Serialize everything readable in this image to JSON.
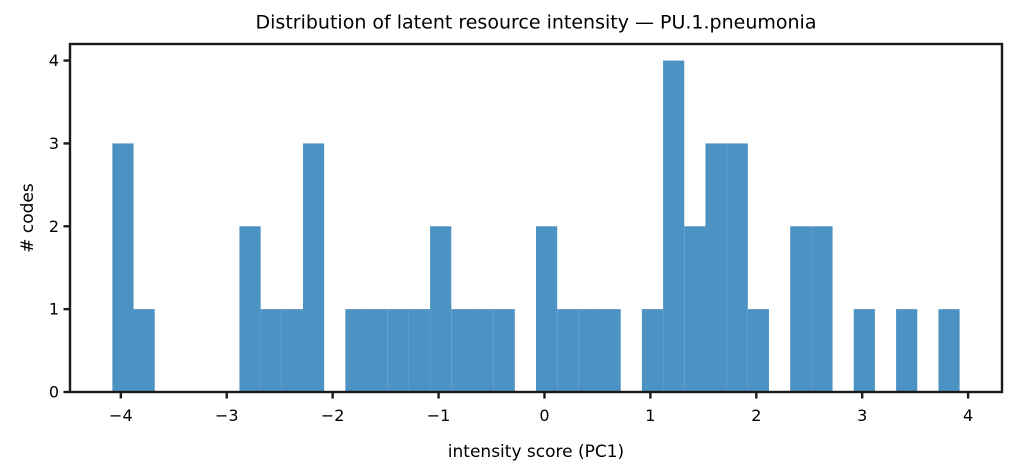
{
  "figure": {
    "background_color": "#ffffff"
  },
  "chart_data": {
    "type": "bar",
    "subtype": "histogram",
    "title": "Distribution of latent resource intensity — PU.1.pneumonia",
    "xlabel": "intensity score (PC1)",
    "ylabel": "# codes",
    "bar_color": "#4C92C3",
    "axis_color": "#1a1a1a",
    "grid": false,
    "legend": null,
    "bin_start": -4.08,
    "bin_width": 0.2,
    "n_bins": 40,
    "counts": [
      3,
      1,
      0,
      0,
      0,
      0,
      2,
      1,
      1,
      3,
      0,
      1,
      1,
      1,
      1,
      2,
      1,
      1,
      1,
      0,
      2,
      1,
      1,
      1,
      0,
      1,
      4,
      2,
      3,
      3,
      1,
      0,
      2,
      2,
      0,
      1,
      0,
      1,
      0,
      1
    ],
    "xlim": [
      -4.48,
      4.32
    ],
    "ylim": [
      0,
      4.2
    ],
    "xticks": [
      -4,
      -3,
      -2,
      -1,
      0,
      1,
      2,
      3,
      4
    ],
    "xtick_labels": [
      "−4",
      "−3",
      "−2",
      "−1",
      "0",
      "1",
      "2",
      "3",
      "4"
    ],
    "yticks": [
      0,
      1,
      2,
      3,
      4
    ],
    "ytick_labels": [
      "0",
      "1",
      "2",
      "3",
      "4"
    ]
  }
}
